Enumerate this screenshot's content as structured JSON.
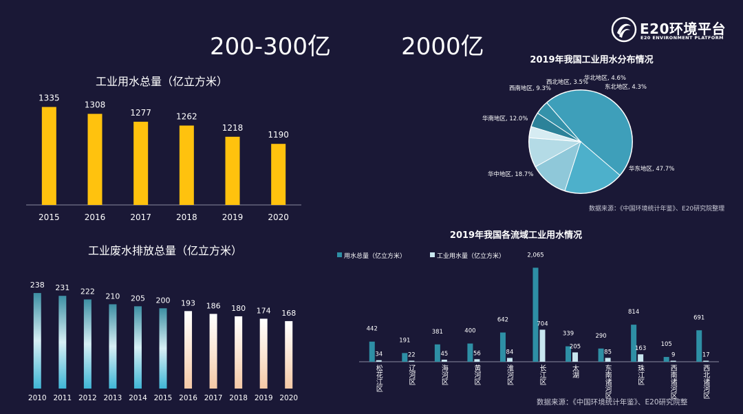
{
  "headline": {
    "left": "200-300亿",
    "right": "2000亿"
  },
  "brand": {
    "name": "E20环境平台",
    "tagline": "E20 ENVIRONMENT PLATFORM"
  },
  "colors": {
    "background": "#1a1836",
    "bar_yellow": "#ffc20e",
    "teal_dark": "#2e8fa5",
    "teal_light": "#c8e6ef",
    "wastewater_blue": "#3fb6d6",
    "wastewater_peach": "#f5c9a6"
  },
  "charts": {
    "water_use": {
      "title": "工业用水总量（亿立方米）"
    },
    "wastewater": {
      "title": "工业废水排放总量（亿立方米）"
    },
    "pie": {
      "title": "2019年我国工业用水分布情况",
      "source": "数据来源：《中国环境统计年鉴》、E20研究院整理"
    },
    "basin": {
      "title": "2019年我国各流域工业用水情况",
      "source": "数据来源：《中国环境统计年鉴》、E20研究院整"
    }
  },
  "chart_data": [
    {
      "id": "water_use",
      "type": "bar",
      "title": "工业用水总量（亿立方米）",
      "categories": [
        "2015",
        "2016",
        "2017",
        "2018",
        "2019",
        "2020"
      ],
      "values": [
        1335,
        1308,
        1277,
        1262,
        1218,
        1190
      ],
      "ylim": [
        950,
        1350
      ],
      "grid": false
    },
    {
      "id": "wastewater",
      "type": "bar",
      "title": "工业废水排放总量（亿立方米）",
      "categories": [
        "2010",
        "2011",
        "2012",
        "2013",
        "2014",
        "2015",
        "2016",
        "2017",
        "2018",
        "2019",
        "2020"
      ],
      "values": [
        238,
        231,
        222,
        210,
        205,
        200,
        193,
        186,
        180,
        174,
        168
      ],
      "ylim": [
        0,
        245
      ],
      "grid": false
    },
    {
      "id": "pie",
      "type": "pie",
      "title": "2019年我国工业用水分布情况",
      "labels": [
        "华北地区, 4.6%",
        "东北地区, 4.3%",
        "华东地区, 47.7%",
        "华中地区, 18.7%",
        "华南地区, 12.0%",
        "西南地区, 9.3%",
        "西北地区, 3.5%"
      ],
      "values": [
        4.6,
        4.3,
        47.7,
        18.7,
        12.0,
        9.3,
        3.5
      ],
      "colors": [
        "#2c8299",
        "#3592aa",
        "#3e9fba",
        "#4db0cb",
        "#8fc8d9",
        "#b4dbe6",
        "#d6ecf2"
      ]
    },
    {
      "id": "basin",
      "type": "bar",
      "title": "2019年我国各流域工业用水情况",
      "categories": [
        "松花江区",
        "辽河区",
        "海河区",
        "黄河区",
        "淮河区",
        "长江区",
        "太湖",
        "东南诸河区",
        "珠江区",
        "西南诸河区",
        "西北诸河区"
      ],
      "series": [
        {
          "name": "用水总量（亿立方米）",
          "values": [
            442,
            191,
            381,
            400,
            642,
            2065,
            339,
            290,
            814,
            105,
            691
          ]
        },
        {
          "name": "工业用水量（亿立方米）",
          "values": [
            34,
            22,
            45,
            56,
            84,
            704,
            205,
            85,
            163,
            9,
            17
          ]
        }
      ],
      "value_labels": [
        [
          "442",
          "191",
          "381",
          "400",
          "642",
          "2,065",
          "339",
          "290",
          "814",
          "105",
          "691"
        ],
        [
          "34",
          "22",
          "45",
          "56",
          "84",
          "704",
          "205",
          "85",
          "163",
          "9",
          "17"
        ]
      ],
      "ylim": [
        0,
        2100
      ],
      "legend": "top-left",
      "grid": false
    }
  ]
}
